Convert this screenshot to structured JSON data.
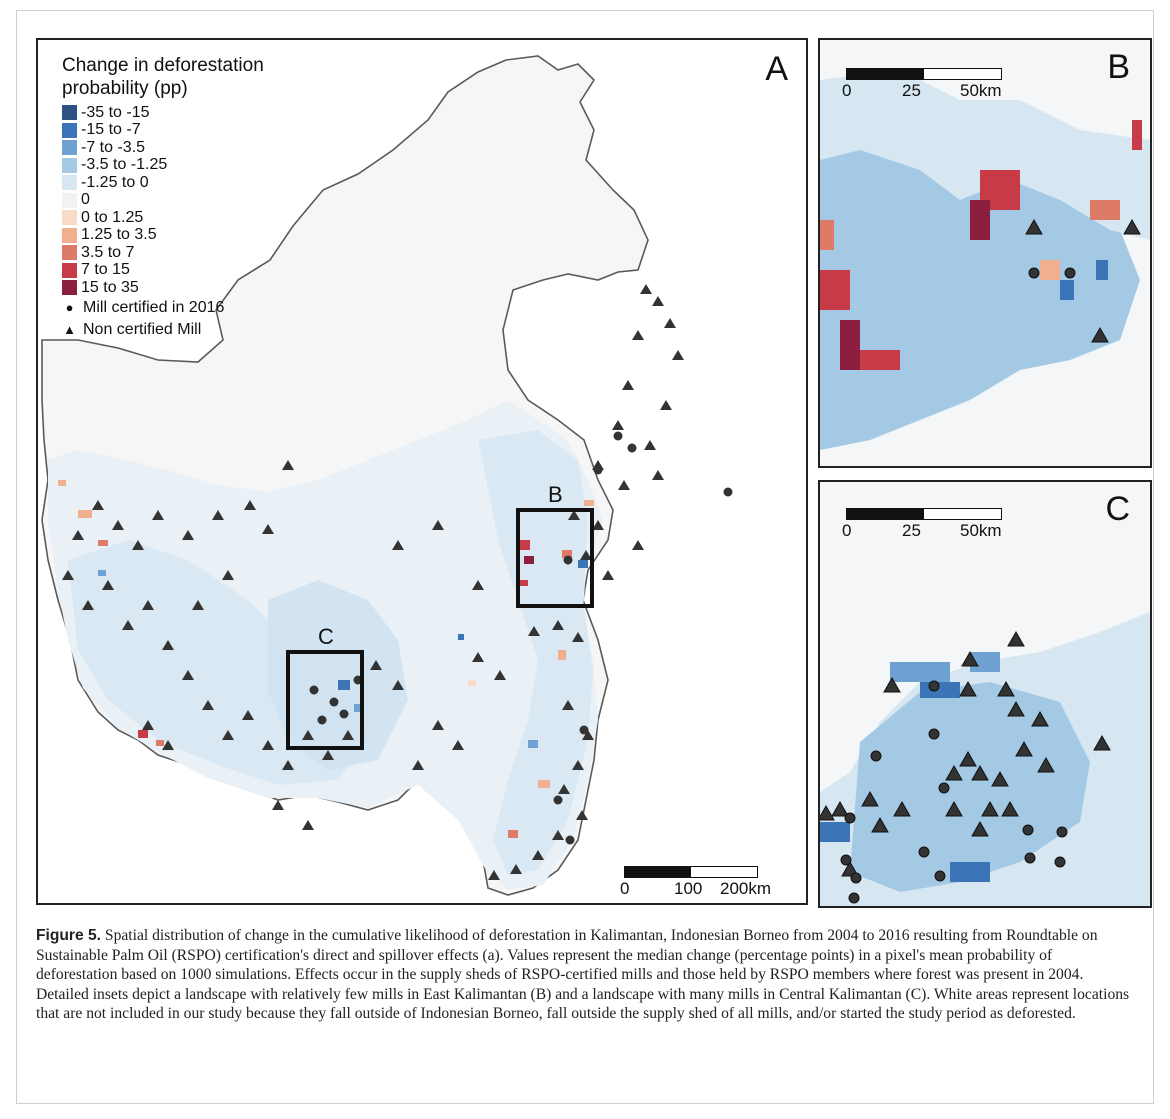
{
  "figure": {
    "label": "Figure 5.",
    "caption": " Spatial distribution of change in the cumulative likelihood of deforestation in Kalimantan, Indonesian Borneo from 2004 to 2016 resulting from Roundtable on Sustainable Palm Oil (RSPO) certification's direct and spillover effects (a). Values represent the median change (percentage points) in a pixel's mean probability of deforestation based on 1000 simulations. Effects occur in the supply sheds of RSPO-certified mills and those held by RSPO members where forest was present in 2004. Detailed insets depict a landscape with relatively few mills in East Kalimantan (B) and a landscape with many mills in Central Kalimantan (C). White areas represent locations that are not included in our study because they fall outside of Indonesian Borneo, fall outside the supply shed of all mills, and/or started the study period as deforested."
  },
  "panels": {
    "a": {
      "letter": "A",
      "box_b_label": "B",
      "box_c_label": "C",
      "scalebar": {
        "labels": [
          "0",
          "100",
          "200km"
        ]
      }
    },
    "b": {
      "letter": "B",
      "scalebar": {
        "labels": [
          "0",
          "25",
          "50km"
        ]
      }
    },
    "c": {
      "letter": "C",
      "scalebar": {
        "labels": [
          "0",
          "25",
          "50km"
        ]
      }
    }
  },
  "legend": {
    "title": "Change in deforestation probability (pp)",
    "classes": [
      {
        "label": "-35 to -15",
        "color": "#2b5283"
      },
      {
        "label": "-15 to -7",
        "color": "#3b75b8"
      },
      {
        "label": "-7 to -3.5",
        "color": "#6fa2d3"
      },
      {
        "label": "-3.5 to -1.25",
        "color": "#a4c9e4"
      },
      {
        "label": "-1.25 to 0",
        "color": "#d7e7f2"
      },
      {
        "label": "0",
        "color": "#f2f2f2"
      },
      {
        "label": "0 to 1.25",
        "color": "#f9dcc8"
      },
      {
        "label": "1.25 to 3.5",
        "color": "#f0b090"
      },
      {
        "label": "3.5 to 7",
        "color": "#dd7a68"
      },
      {
        "label": "7 to 15",
        "color": "#c73b48"
      },
      {
        "label": "15 to 35",
        "color": "#8c1f3f"
      }
    ],
    "mill_certified": {
      "label": "Mill certified in 2016",
      "symbol": "circle"
    },
    "mill_noncertified": {
      "label": "Non certified Mill",
      "symbol": "triangle"
    }
  },
  "colors": {
    "coast": "#555555",
    "mill": "#333333"
  }
}
